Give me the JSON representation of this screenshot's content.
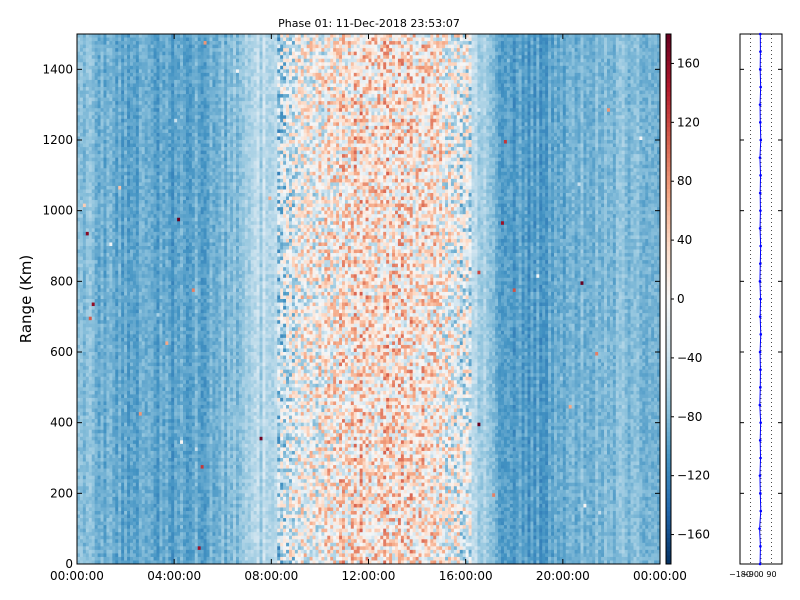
{
  "chart_data": [
    {
      "type": "heatmap",
      "title": "Phase 01: 11-Dec-2018 23:53:07",
      "xlabel": "",
      "ylabel": "Range (Km)",
      "xlim": [
        "00:00:00",
        "24:00:00"
      ],
      "ylim": [
        0,
        1500
      ],
      "x_ticks": [
        "00:00:00",
        "04:00:00",
        "08:00:00",
        "12:00:00",
        "16:00:00",
        "20:00:00",
        "00:00:00"
      ],
      "y_ticks": [
        0,
        200,
        400,
        600,
        800,
        1000,
        1200,
        1400
      ],
      "colormap": "RdBu_r",
      "colorbar": {
        "range": [
          -180,
          180
        ],
        "ticks": [
          -160,
          -120,
          -80,
          -40,
          0,
          40,
          80,
          120,
          160
        ]
      },
      "column_profile": [
        {
          "time": "00:00",
          "mean": -78
        },
        {
          "time": "01:00",
          "mean": -82
        },
        {
          "time": "02:00",
          "mean": -90
        },
        {
          "time": "03:00",
          "mean": -95
        },
        {
          "time": "04:00",
          "mean": -100
        },
        {
          "time": "05:00",
          "mean": -92
        },
        {
          "time": "06:00",
          "mean": -82
        },
        {
          "time": "07:00",
          "mean": -65
        },
        {
          "time": "08:00",
          "mean": -45
        },
        {
          "time": "09:00",
          "mean": -20
        },
        {
          "time": "10:00",
          "mean": 5
        },
        {
          "time": "11:00",
          "mean": 20
        },
        {
          "time": "12:00",
          "mean": 25
        },
        {
          "time": "13:00",
          "mean": 25
        },
        {
          "time": "14:00",
          "mean": 18
        },
        {
          "time": "15:00",
          "mean": 5
        },
        {
          "time": "16:00",
          "mean": -25
        },
        {
          "time": "17:00",
          "mean": -80
        },
        {
          "time": "18:00",
          "mean": -98
        },
        {
          "time": "19:00",
          "mean": -100
        },
        {
          "time": "20:00",
          "mean": -90
        },
        {
          "time": "21:00",
          "mean": -82
        },
        {
          "time": "22:00",
          "mean": -78
        },
        {
          "time": "23:00",
          "mean": -76
        },
        {
          "time": "24:00",
          "mean": -80
        }
      ]
    },
    {
      "type": "line",
      "xlim": [
        -180,
        180
      ],
      "x_ticks": [
        -180,
        -90,
        0,
        90
      ],
      "x_tick_labels": [
        "−180",
        "−90",
        "0",
        "90"
      ],
      "ylim": [
        0,
        1500
      ],
      "grid": "x-dotted",
      "series": [
        {
          "color": "#0000ff",
          "marker": "point",
          "range_km": [
            0,
            50,
            100,
            150,
            200,
            250,
            300,
            350,
            400,
            450,
            500,
            550,
            600,
            650,
            700,
            750,
            800,
            850,
            900,
            950,
            1000,
            1050,
            1100,
            1150,
            1200,
            1250,
            1300,
            1350,
            1400,
            1450,
            1500
          ],
          "phase_deg": [
            -8,
            -5,
            -12,
            -2,
            -6,
            -9,
            -4,
            -7,
            -3,
            -10,
            -6,
            -5,
            -8,
            -2,
            -7,
            -4,
            -9,
            -6,
            -3,
            -8,
            -5,
            -7,
            -4,
            -9,
            -2,
            -6,
            -8,
            -3,
            -7,
            -5,
            -6
          ]
        }
      ]
    }
  ]
}
